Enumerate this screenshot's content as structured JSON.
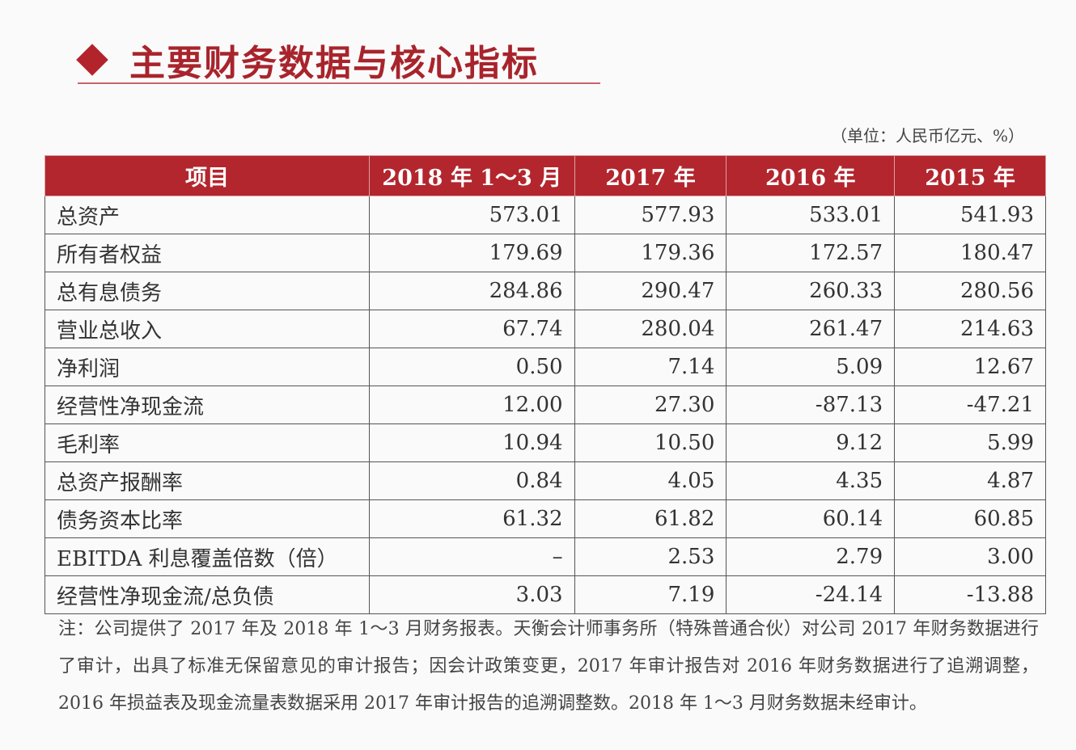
{
  "header": {
    "title": "主要财务数据与核心指标",
    "unit": "（单位：人民币亿元、%）"
  },
  "table": {
    "columns": [
      "项目",
      "2018 年 1～3 月",
      "2017 年",
      "2016 年",
      "2015 年"
    ],
    "rows": [
      [
        "总资产",
        "573.01",
        "577.93",
        "533.01",
        "541.93"
      ],
      [
        "所有者权益",
        "179.69",
        "179.36",
        "172.57",
        "180.47"
      ],
      [
        "总有息债务",
        "284.86",
        "290.47",
        "260.33",
        "280.56"
      ],
      [
        "营业总收入",
        "67.74",
        "280.04",
        "261.47",
        "214.63"
      ],
      [
        "净利润",
        "0.50",
        "7.14",
        "5.09",
        "12.67"
      ],
      [
        "经营性净现金流",
        "12.00",
        "27.30",
        "-87.13",
        "-47.21"
      ],
      [
        "毛利率",
        "10.94",
        "10.50",
        "9.12",
        "5.99"
      ],
      [
        "总资产报酬率",
        "0.84",
        "4.05",
        "4.35",
        "4.87"
      ],
      [
        "债务资本比率",
        "61.32",
        "61.82",
        "60.14",
        "60.85"
      ],
      [
        "EBITDA 利息覆盖倍数（倍）",
        "–",
        "2.53",
        "2.79",
        "3.00"
      ],
      [
        "经营性净现金流/总负债",
        "3.03",
        "7.19",
        "-24.14",
        "-13.88"
      ]
    ]
  },
  "note": "注：公司提供了 2017 年及 2018 年 1～3 月财务报表。天衡会计师事务所（特殊普通合伙）对公司 2017 年财务数据进行了审计，出具了标准无保留意见的审计报告；因会计政策变更，2017 年审计报告对 2016 年财务数据进行了追溯调整，2016 年损益表及现金流量表数据采用 2017 年审计报告的追溯调整数。2018 年 1～3 月财务数据未经审计。"
}
